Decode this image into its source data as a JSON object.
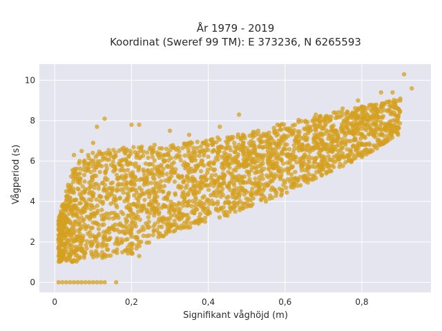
{
  "chart_data": {
    "type": "scatter",
    "title": "År 1979 - 2019",
    "subtitle": "Koordinat (Sweref 99 TM): E 373236, N 6265593",
    "xlabel": "Signifikant våghöjd (m)",
    "ylabel": "Vågperiod (s)",
    "xlim": [
      -0.04,
      0.98
    ],
    "ylim": [
      -0.5,
      10.8
    ],
    "x_ticks": [
      0,
      0.2,
      0.4,
      0.6,
      0.8
    ],
    "x_tick_labels": [
      "0",
      "0,2",
      "0,4",
      "0,6",
      "0,8"
    ],
    "y_ticks": [
      0,
      2,
      4,
      6,
      8,
      10
    ],
    "y_tick_labels": [
      "0",
      "2",
      "4",
      "6",
      "8",
      "10"
    ],
    "grid": true,
    "legend": "none",
    "colors": {
      "marker": "#d4a020",
      "plot_background": "#e5e5f0",
      "gridline": "#ffffff"
    },
    "envelope": {
      "x": [
        0.01,
        0.05,
        0.1,
        0.2,
        0.3,
        0.4,
        0.5,
        0.6,
        0.7,
        0.8,
        0.9
      ],
      "y_low": [
        1.0,
        1.0,
        1.1,
        1.4,
        2.4,
        3.0,
        3.7,
        4.4,
        5.3,
        6.2,
        7.3
      ],
      "y_high": [
        3.2,
        5.8,
        6.5,
        6.7,
        6.8,
        7.1,
        7.4,
        7.9,
        8.3,
        8.7,
        9.1
      ]
    },
    "series": [
      {
        "values": [
          [
            0.01,
            0
          ],
          [
            0.02,
            0
          ],
          [
            0.03,
            0
          ],
          [
            0.04,
            0
          ],
          [
            0.05,
            0
          ],
          [
            0.06,
            0
          ],
          [
            0.07,
            0
          ],
          [
            0.08,
            0
          ],
          [
            0.09,
            0
          ],
          [
            0.1,
            0
          ],
          [
            0.11,
            0
          ],
          [
            0.12,
            0
          ],
          [
            0.13,
            0
          ],
          [
            0.16,
            0
          ],
          [
            0.02,
            2.8
          ],
          [
            0.01,
            1.7
          ],
          [
            0.03,
            4.5
          ],
          [
            0.05,
            6.3
          ],
          [
            0.07,
            6.5
          ],
          [
            0.1,
            6.9
          ],
          [
            0.13,
            8.1
          ],
          [
            0.11,
            7.7
          ],
          [
            0.2,
            7.8
          ],
          [
            0.22,
            7.8
          ],
          [
            0.26,
            6.8
          ],
          [
            0.3,
            7.5
          ],
          [
            0.35,
            7.3
          ],
          [
            0.43,
            7.7
          ],
          [
            0.48,
            8.3
          ],
          [
            0.53,
            7.5
          ],
          [
            0.58,
            7.8
          ],
          [
            0.6,
            7.2
          ],
          [
            0.62,
            7.4
          ],
          [
            0.65,
            7.6
          ],
          [
            0.68,
            8.3
          ],
          [
            0.72,
            8.2
          ],
          [
            0.75,
            8.6
          ],
          [
            0.79,
            9.0
          ],
          [
            0.81,
            8.4
          ],
          [
            0.85,
            9.4
          ],
          [
            0.88,
            9.4
          ],
          [
            0.9,
            9.0
          ],
          [
            0.91,
            10.3
          ],
          [
            0.93,
            9.6
          ],
          [
            0.22,
            1.3
          ],
          [
            0.29,
            2.5
          ],
          [
            0.33,
            2.8
          ],
          [
            0.4,
            3.5
          ],
          [
            0.45,
            3.3
          ],
          [
            0.49,
            3.7
          ],
          [
            0.55,
            4.0
          ],
          [
            0.59,
            4.3
          ],
          [
            0.64,
            4.8
          ],
          [
            0.72,
            5.5
          ],
          [
            0.8,
            6.2
          ],
          [
            0.84,
            6.8
          ],
          [
            0.87,
            7.8
          ]
        ]
      }
    ]
  }
}
